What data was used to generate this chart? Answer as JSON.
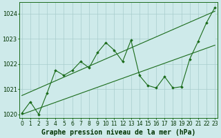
{
  "title": "Graphe pression niveau de la mer (hPa)",
  "x_labels": [
    "0",
    "1",
    "2",
    "3",
    "4",
    "5",
    "6",
    "7",
    "8",
    "9",
    "10",
    "11",
    "12",
    "13",
    "14",
    "15",
    "16",
    "17",
    "18",
    "19",
    "20",
    "21",
    "22",
    "23"
  ],
  "x_values": [
    0,
    1,
    2,
    3,
    4,
    5,
    6,
    7,
    8,
    9,
    10,
    11,
    12,
    13,
    14,
    15,
    16,
    17,
    18,
    19,
    20,
    21,
    22,
    23
  ],
  "main_line": [
    1020.05,
    1020.5,
    1020.0,
    1020.85,
    1021.75,
    1021.55,
    1021.75,
    1022.1,
    1021.85,
    1022.45,
    1022.85,
    1022.55,
    1022.1,
    1022.95,
    1021.55,
    1021.15,
    1021.05,
    1021.5,
    1021.05,
    1021.1,
    1022.2,
    1022.9,
    1023.65,
    1024.25
  ],
  "upper_line_pts": [
    [
      0,
      1020.75
    ],
    [
      23,
      1024.1
    ]
  ],
  "lower_line_pts": [
    [
      0,
      1020.0
    ],
    [
      23,
      1022.75
    ]
  ],
  "ylim": [
    1019.85,
    1024.45
  ],
  "yticks": [
    1020,
    1021,
    1022,
    1023,
    1024
  ],
  "xlim": [
    -0.3,
    23.3
  ],
  "bg_color": "#ceeaea",
  "grid_color": "#a8cccc",
  "line_color": "#1a6b1a",
  "marker_color": "#1a6b1a",
  "title_color": "#003300",
  "title_fontsize": 7.0,
  "tick_fontsize": 6.0,
  "figsize": [
    3.2,
    2.0
  ],
  "dpi": 100
}
